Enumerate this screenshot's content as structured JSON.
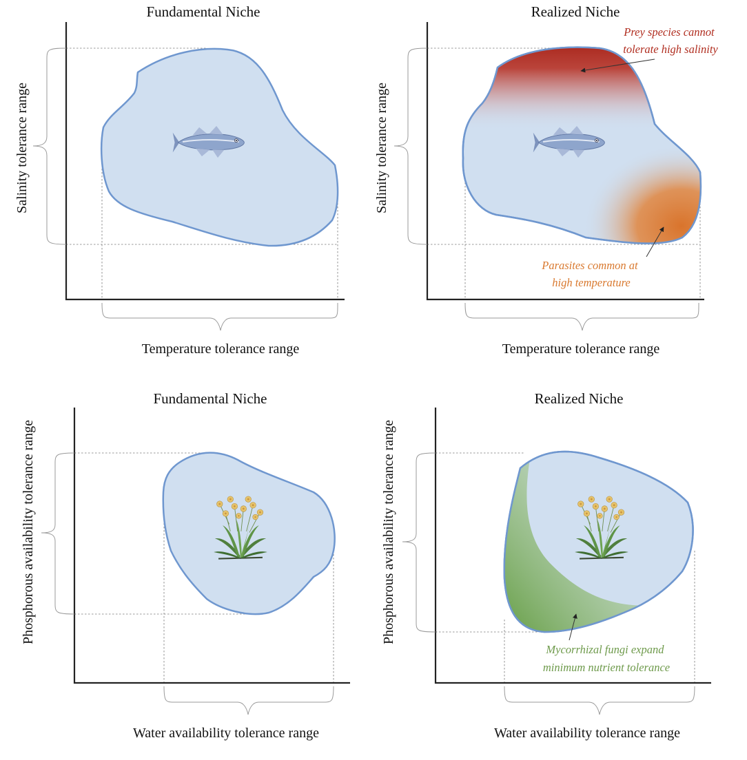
{
  "colors": {
    "niche_fill": "#d0dff0",
    "niche_stroke": "#6f97cf",
    "salinity_stress": "#b02d1f",
    "temperature_stress": "#d9792f",
    "fungi_expansion": "#6e9a4b"
  },
  "panels": {
    "fish_fundamental": {
      "title": "Fundamental Niche",
      "x_label": "Temperature tolerance range",
      "y_label": "Salinity  tolerance range",
      "organism_icon": "fish-icon"
    },
    "fish_realized": {
      "title": "Realized Niche",
      "x_label": "Temperature tolerance range",
      "y_label": "Salinity  tolerance range",
      "organism_icon": "fish-icon",
      "annotation_top": [
        "Prey species cannot",
        "tolerate high salinity"
      ],
      "annotation_bottom": [
        "Parasites common at",
        "high temperature"
      ]
    },
    "plant_fundamental": {
      "title": "Fundamental Niche",
      "x_label": "Water availability tolerance range",
      "y_label": "Phosphorous availability  tolerance range",
      "organism_icon": "flowering-plant-icon"
    },
    "plant_realized": {
      "title": "Realized Niche",
      "x_label": "Water availability tolerance range",
      "y_label": "Phosphorous availability  tolerance range",
      "organism_icon": "flowering-plant-icon",
      "annotation_bottom": [
        "Mycorrhizal fungi expand",
        "minimum nutrient tolerance"
      ]
    }
  }
}
